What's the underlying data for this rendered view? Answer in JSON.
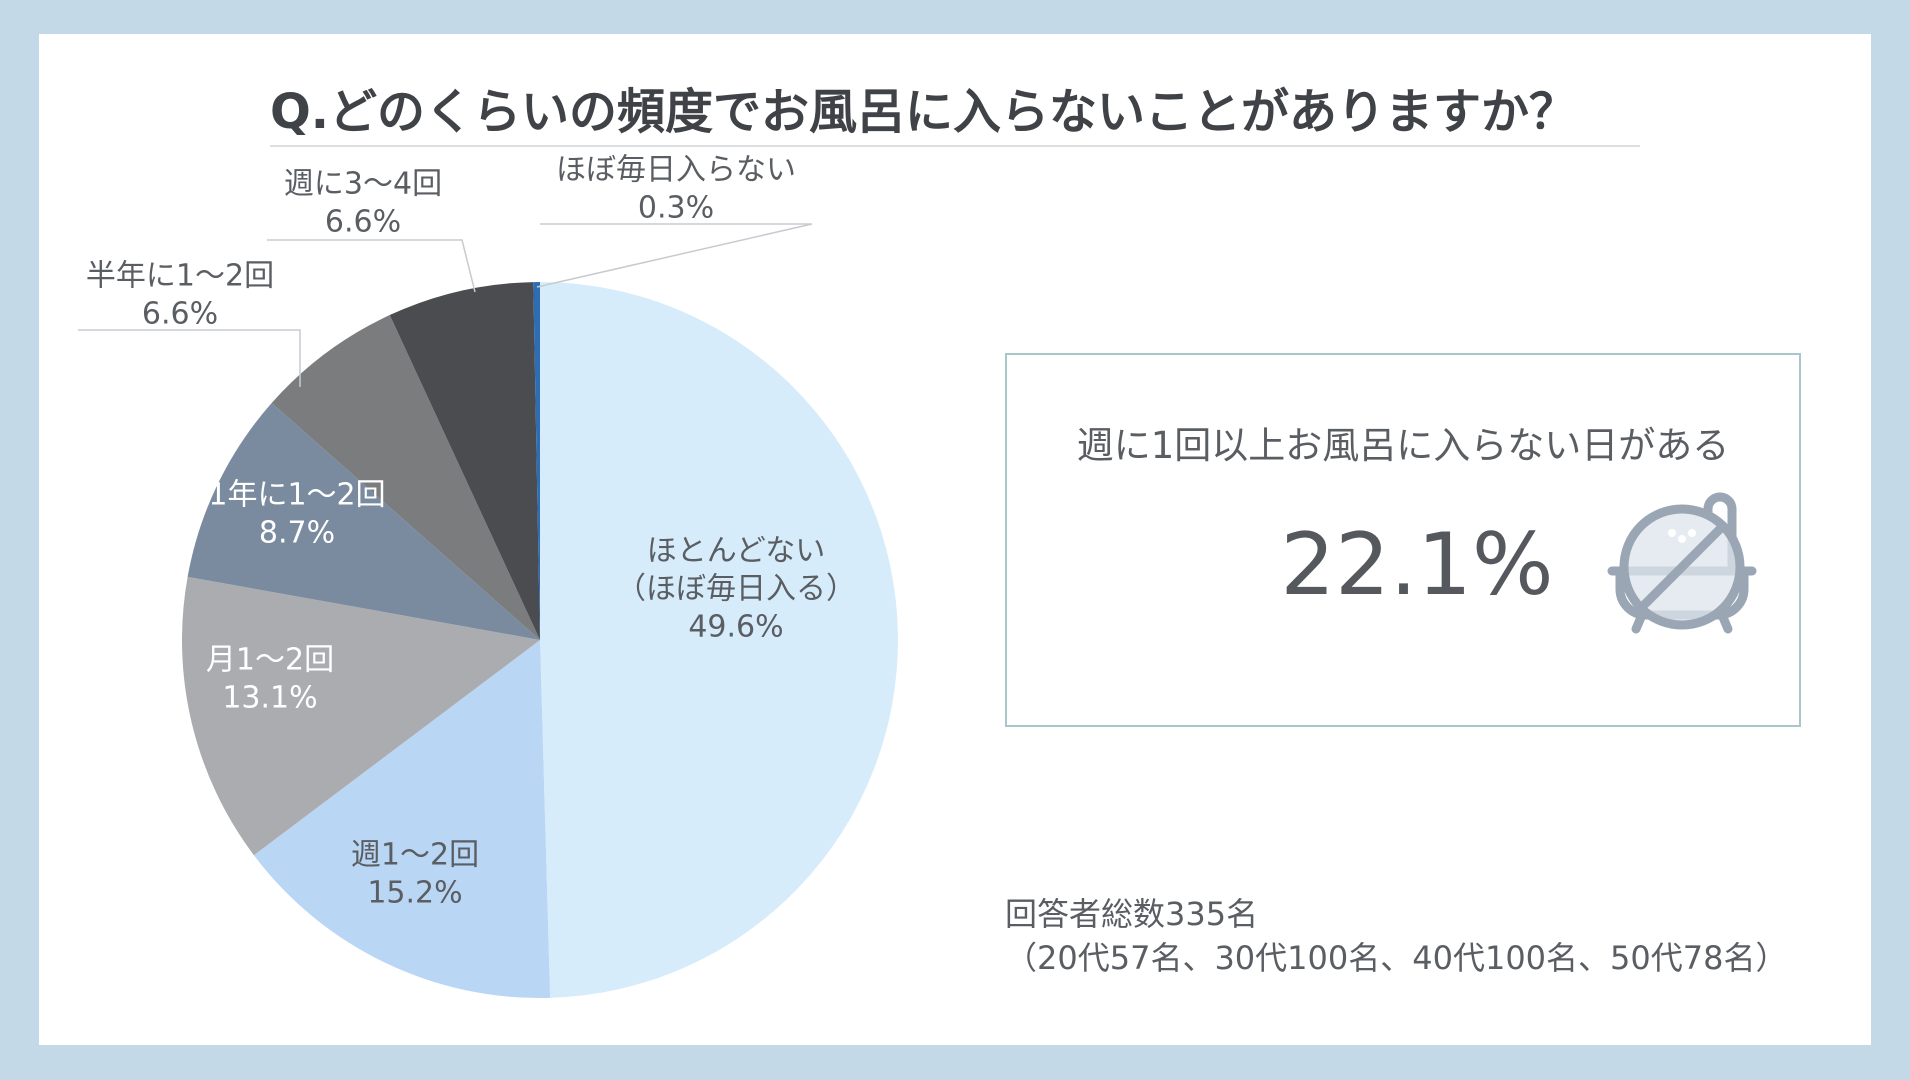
{
  "title": "Q.どのくらいの頻度でお風呂に入らないことがありますか？",
  "callout": {
    "label": "週に1回以上お風呂に入らない日がある",
    "value": "22.1%",
    "icon": "no-bath-icon"
  },
  "footnote": {
    "line1": "回答者総数335名",
    "line2": "（20代57名、30代100名、40代100名、50代78名）"
  },
  "colors": {
    "background": "#c3d9e7",
    "card": "#ffffff",
    "title": "#3f4246",
    "callout_border": "#a9c6cc"
  },
  "chart_data": {
    "type": "pie",
    "start": "12 o'clock",
    "direction": "clockwise",
    "slices": [
      {
        "label": "ほとんどない",
        "label_extra": "（ほぼ毎日入る）",
        "value": 49.6,
        "display": "49.6%",
        "color": "#d7ecfb",
        "label_color": "#5a5e63"
      },
      {
        "label": "週1〜2回",
        "value": 15.2,
        "display": "15.2%",
        "color": "#bad6f5",
        "label_color": "#5a5e63"
      },
      {
        "label": "月1〜2回",
        "value": 13.1,
        "display": "13.1%",
        "color": "#abacb0",
        "label_color": "#ffffff"
      },
      {
        "label": "1年に1〜2回",
        "value": 8.7,
        "display": "8.7%",
        "color": "#7a8b9f",
        "label_color": "#ffffff"
      },
      {
        "label": "半年に1〜2回",
        "value": 6.6,
        "display": "6.6%",
        "color": "#7b7c7e",
        "label_color": "#5a5e63"
      },
      {
        "label": "週に3〜4回",
        "value": 6.6,
        "display": "6.6%",
        "color": "#4a4c50",
        "label_color": "#5a5e63"
      },
      {
        "label": "ほぼ毎日入らない",
        "value": 0.3,
        "display": "0.3%",
        "color": "#2f6db3",
        "label_color": "#5a5e63"
      }
    ]
  }
}
